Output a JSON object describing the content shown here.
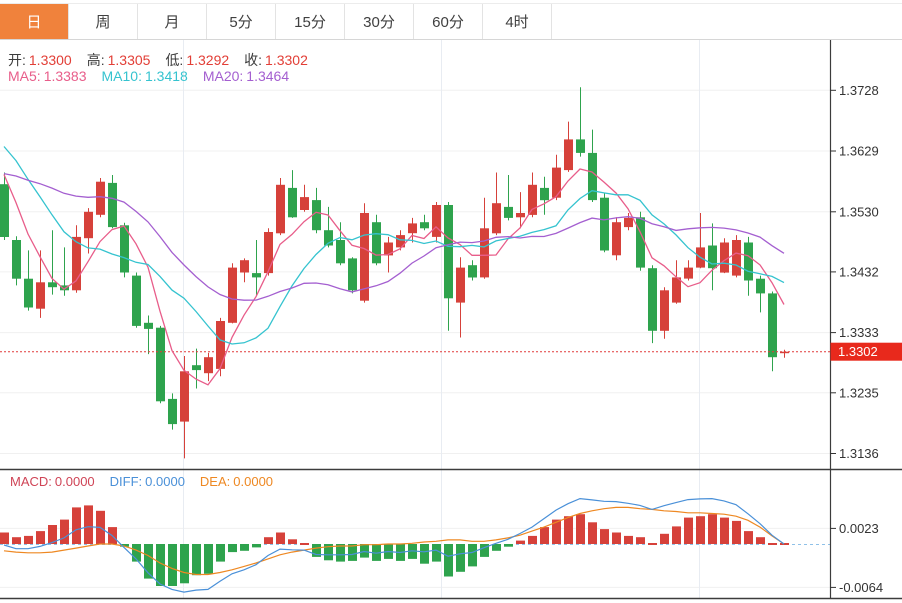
{
  "colors": {
    "up": "#d6413a",
    "down": "#2ea34d",
    "ma5": "#e85d8a",
    "ma10": "#35c3cf",
    "ma20": "#a45fd0",
    "diff": "#4a90d8",
    "dea": "#ee8822",
    "macd_label": "#cf4456",
    "tab_active_bg": "#f0823c",
    "price_badge_bg": "#e8291c",
    "axis_text": "#333333",
    "grid_h": "#f0f0f0",
    "grid_v": "#e8ecf2",
    "current_line": "#e03a3a",
    "ohlc_label": "#3c3c3c",
    "ohlc_value": "#e23e36",
    "frame": "#3c3c3c",
    "macd_zero_dash": "#8fc1e8"
  },
  "tabbar": {
    "tabs": [
      {
        "name": "day",
        "label": "日",
        "active": true
      },
      {
        "name": "week",
        "label": "周",
        "active": false
      },
      {
        "name": "month",
        "label": "月",
        "active": false
      },
      {
        "name": "m5",
        "label": "5分",
        "active": false
      },
      {
        "name": "m15",
        "label": "15分",
        "active": false
      },
      {
        "name": "m30",
        "label": "30分",
        "active": false
      },
      {
        "name": "m60",
        "label": "60分",
        "active": false
      },
      {
        "name": "h4",
        "label": "4时",
        "active": false
      }
    ]
  },
  "legend": {
    "ohlc": [
      {
        "name": "open",
        "label": "开:",
        "value": "1.3300"
      },
      {
        "name": "high",
        "label": "高:",
        "value": "1.3305"
      },
      {
        "name": "low",
        "label": "低:",
        "value": "1.3292"
      },
      {
        "name": "close",
        "label": "收:",
        "value": "1.3302"
      }
    ],
    "ma": [
      {
        "name": "ma5",
        "key": "ma5",
        "label": "MA5:",
        "value": "1.3383"
      },
      {
        "name": "ma10",
        "key": "ma10",
        "label": "MA10:",
        "value": "1.3418"
      },
      {
        "name": "ma20",
        "key": "ma20",
        "label": "MA20:",
        "value": "1.3464"
      }
    ],
    "macd": [
      {
        "name": "macd",
        "key": "macd_label",
        "label": "MACD:",
        "value": "0.0000"
      },
      {
        "name": "diff",
        "key": "diff",
        "label": "DIFF:",
        "value": "0.0000"
      },
      {
        "name": "dea",
        "key": "dea",
        "label": "DEA:",
        "value": "0.0000"
      }
    ]
  },
  "chart_data": {
    "type": "candlestick",
    "title": "",
    "legend_position": "top-left",
    "grid": true,
    "price_axis": {
      "ticks": [
        {
          "v": 1.3728,
          "label": "1.3728"
        },
        {
          "v": 1.3629,
          "label": "1.3629"
        },
        {
          "v": 1.353,
          "label": "1.3530"
        },
        {
          "v": 1.3432,
          "label": "1.3432"
        },
        {
          "v": 1.3333,
          "label": "1.3333"
        },
        {
          "v": 1.3235,
          "label": "1.3235"
        },
        {
          "v": 1.3136,
          "label": "1.3136"
        }
      ],
      "range_top": 1.381,
      "range_bottom": 1.3114,
      "current_price": {
        "v": 1.3302,
        "label": "1.3302"
      }
    },
    "candles_ohlc": [
      [
        1.3575,
        1.3594,
        1.3484,
        1.3489
      ],
      [
        1.3484,
        1.349,
        1.341,
        1.3421
      ],
      [
        1.3421,
        1.3467,
        1.3369,
        1.3374
      ],
      [
        1.3372,
        1.3467,
        1.3357,
        1.3415
      ],
      [
        1.3415,
        1.35,
        1.3395,
        1.3407
      ],
      [
        1.341,
        1.3472,
        1.3393,
        1.3402
      ],
      [
        1.3402,
        1.3508,
        1.3398,
        1.3489
      ],
      [
        1.3487,
        1.3536,
        1.3462,
        1.353
      ],
      [
        1.3525,
        1.3585,
        1.3521,
        1.3579
      ],
      [
        1.3577,
        1.359,
        1.3503,
        1.3505
      ],
      [
        1.3508,
        1.3512,
        1.3423,
        1.3431
      ],
      [
        1.3426,
        1.3431,
        1.3341,
        1.3344
      ],
      [
        1.3349,
        1.3361,
        1.3298,
        1.3339
      ],
      [
        1.3341,
        1.3344,
        1.3218,
        1.3221
      ],
      [
        1.3225,
        1.3234,
        1.3175,
        1.3184
      ],
      [
        1.3188,
        1.3295,
        1.3128,
        1.327
      ],
      [
        1.328,
        1.3307,
        1.3242,
        1.3272
      ],
      [
        1.3267,
        1.33,
        1.3254,
        1.3293
      ],
      [
        1.3274,
        1.3357,
        1.3262,
        1.3352
      ],
      [
        1.3349,
        1.3446,
        1.3348,
        1.3439
      ],
      [
        1.3431,
        1.3454,
        1.3415,
        1.3451
      ],
      [
        1.343,
        1.3484,
        1.3393,
        1.3423
      ],
      [
        1.343,
        1.3503,
        1.3426,
        1.3497
      ],
      [
        1.3495,
        1.3585,
        1.3492,
        1.3574
      ],
      [
        1.3569,
        1.3598,
        1.352,
        1.3521
      ],
      [
        1.3533,
        1.3574,
        1.353,
        1.3554
      ],
      [
        1.3549,
        1.3569,
        1.3495,
        1.35
      ],
      [
        1.35,
        1.3538,
        1.3472,
        1.3475
      ],
      [
        1.3484,
        1.3513,
        1.3443,
        1.3446
      ],
      [
        1.3454,
        1.3456,
        1.3397,
        1.3402
      ],
      [
        1.3385,
        1.3544,
        1.3382,
        1.3528
      ],
      [
        1.3513,
        1.3525,
        1.3443,
        1.3446
      ],
      [
        1.3459,
        1.3489,
        1.3431,
        1.348
      ],
      [
        1.3472,
        1.35,
        1.3467,
        1.3492
      ],
      [
        1.3495,
        1.352,
        1.348,
        1.3511
      ],
      [
        1.3513,
        1.3525,
        1.35,
        1.3503
      ],
      [
        1.3489,
        1.3546,
        1.348,
        1.3541
      ],
      [
        1.3541,
        1.3546,
        1.3336,
        1.3389
      ],
      [
        1.3382,
        1.3456,
        1.3325,
        1.3439
      ],
      [
        1.3443,
        1.3451,
        1.3418,
        1.3423
      ],
      [
        1.3423,
        1.3553,
        1.3421,
        1.3503
      ],
      [
        1.3495,
        1.3594,
        1.3492,
        1.3544
      ],
      [
        1.3538,
        1.359,
        1.3516,
        1.352
      ],
      [
        1.3521,
        1.3562,
        1.3503,
        1.3528
      ],
      [
        1.3525,
        1.3594,
        1.3521,
        1.3574
      ],
      [
        1.3569,
        1.3587,
        1.3525,
        1.3549
      ],
      [
        1.3553,
        1.3623,
        1.3549,
        1.3602
      ],
      [
        1.3598,
        1.3677,
        1.3595,
        1.3648
      ],
      [
        1.3648,
        1.3733,
        1.362,
        1.3626
      ],
      [
        1.3626,
        1.3664,
        1.3546,
        1.3549
      ],
      [
        1.3553,
        1.3561,
        1.3464,
        1.3467
      ],
      [
        1.3459,
        1.3521,
        1.3451,
        1.3513
      ],
      [
        1.3505,
        1.3528,
        1.35,
        1.352
      ],
      [
        1.3521,
        1.353,
        1.3434,
        1.3439
      ],
      [
        1.3438,
        1.3443,
        1.3316,
        1.3336
      ],
      [
        1.3336,
        1.3407,
        1.3323,
        1.3402
      ],
      [
        1.3382,
        1.3451,
        1.338,
        1.3423
      ],
      [
        1.3421,
        1.3451,
        1.3418,
        1.3439
      ],
      [
        1.3439,
        1.3528,
        1.3438,
        1.3472
      ],
      [
        1.3475,
        1.3511,
        1.3402,
        1.3438
      ],
      [
        1.3431,
        1.3487,
        1.343,
        1.348
      ],
      [
        1.3426,
        1.3492,
        1.3423,
        1.3484
      ],
      [
        1.348,
        1.3489,
        1.3393,
        1.3418
      ],
      [
        1.3421,
        1.3426,
        1.3366,
        1.3397
      ],
      [
        1.3397,
        1.34,
        1.327,
        1.3293
      ],
      [
        1.33,
        1.3305,
        1.3292,
        1.3302
      ]
    ],
    "ma_periods": [
      5,
      10,
      20
    ],
    "ma_seed_closes": [
      1.35,
      1.351,
      1.353,
      1.355,
      1.357,
      1.358,
      1.357,
      1.356,
      1.3555,
      1.3555,
      1.365,
      1.368,
      1.37,
      1.37,
      1.368,
      1.365,
      1.363,
      1.36,
      1.3585
    ],
    "macd": {
      "axis_ticks": [
        {
          "v": 0.0023,
          "label": "0.0023"
        },
        {
          "v": -0.0064,
          "label": "-0.0064"
        }
      ],
      "hist": [
        0.0017,
        0.001,
        0.0012,
        0.0019,
        0.0028,
        0.0036,
        0.0054,
        0.0057,
        0.0049,
        0.0025,
        -0.0004,
        -0.0026,
        -0.0051,
        -0.0062,
        -0.0062,
        -0.0058,
        -0.0046,
        -0.0044,
        -0.0026,
        -0.0012,
        -0.001,
        -0.0005,
        0.001,
        0.0017,
        0.0007,
        0.0,
        -0.0019,
        -0.0024,
        -0.0026,
        -0.0025,
        -0.002,
        -0.0025,
        -0.0022,
        -0.0025,
        -0.0022,
        -0.0029,
        -0.0026,
        -0.0048,
        -0.0041,
        -0.0033,
        -0.0019,
        -0.001,
        -0.0004,
        0.0005,
        0.0012,
        0.0025,
        0.0036,
        0.0041,
        0.0044,
        0.0032,
        0.0022,
        0.0017,
        0.0012,
        0.001,
        0.0,
        0.0015,
        0.0026,
        0.0039,
        0.0041,
        0.0044,
        0.0039,
        0.0034,
        0.0019,
        0.001,
        0.0002,
        0.0
      ],
      "dea": [
        -0.001,
        -0.0012,
        -0.0013,
        -0.0013,
        -0.0012,
        -0.0009,
        -0.0006,
        -0.0003,
        0.0,
        0.0,
        -0.0003,
        -0.0009,
        -0.0017,
        -0.0028,
        -0.0036,
        -0.0042,
        -0.0045,
        -0.0045,
        -0.0042,
        -0.0038,
        -0.0033,
        -0.0028,
        -0.0022,
        -0.0016,
        -0.0012,
        -0.0009,
        -0.0006,
        -0.0004,
        -0.0003,
        -0.0003,
        -0.0001,
        -0.0001,
        0.0,
        0.0,
        0.0001,
        0.0003,
        0.0004,
        0.0006,
        0.0006,
        0.0004,
        0.0004,
        0.0006,
        0.0009,
        0.0013,
        0.0019,
        0.0025,
        0.0032,
        0.0039,
        0.0045,
        0.0049,
        0.0052,
        0.0054,
        0.0054,
        0.0052,
        0.0051,
        0.0049,
        0.0048,
        0.0046,
        0.0046,
        0.0045,
        0.0044,
        0.0041,
        0.0035,
        0.0025,
        0.0012,
        0.0
      ]
    }
  }
}
